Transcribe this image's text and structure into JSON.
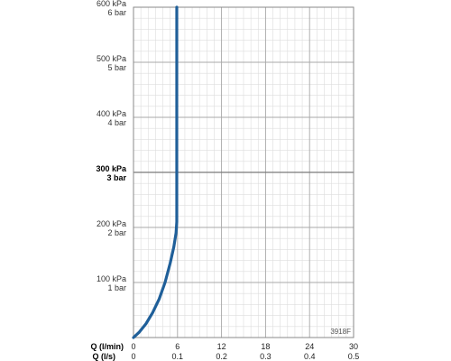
{
  "chart_data": {
    "type": "line",
    "code": "3918F",
    "y_axis": {
      "ylim": [
        0,
        600
      ],
      "ticks": [
        {
          "value": 100,
          "label_kpa": "100 kPa",
          "label_bar": "1 bar",
          "bold": false
        },
        {
          "value": 200,
          "label_kpa": "200 kPa",
          "label_bar": "2 bar",
          "bold": false
        },
        {
          "value": 300,
          "label_kpa": "300 kPa",
          "label_bar": "3 bar",
          "bold": true
        },
        {
          "value": 400,
          "label_kpa": "400 kPa",
          "label_bar": "4 bar",
          "bold": false
        },
        {
          "value": 500,
          "label_kpa": "500 kPa",
          "label_bar": "5 bar",
          "bold": false
        },
        {
          "value": 600,
          "label_kpa": "600 kPa",
          "label_bar": "6 bar",
          "bold": false
        }
      ]
    },
    "x_axis": {
      "xlim": [
        0,
        30
      ],
      "label_lmin": "Q (l/min)",
      "label_ls": "Q (l/s)",
      "ticks": [
        {
          "value": 0,
          "label_lmin": "0",
          "label_ls": "0"
        },
        {
          "value": 6,
          "label_lmin": "6",
          "label_ls": "0.1"
        },
        {
          "value": 12,
          "label_lmin": "12",
          "label_ls": "0.2"
        },
        {
          "value": 18,
          "label_lmin": "18",
          "label_ls": "0.3"
        },
        {
          "value": 24,
          "label_lmin": "24",
          "label_ls": "0.4"
        },
        {
          "value": 30,
          "label_lmin": "30",
          "label_ls": "0.5"
        }
      ]
    },
    "series": [
      {
        "color": "#1f5f99",
        "x": [
          0,
          0.8,
          1.7,
          2.6,
          3.5,
          4.3,
          5.0,
          5.5,
          5.8,
          5.9,
          5.9,
          5.9
        ],
        "y": [
          0,
          10,
          25,
          45,
          70,
          100,
          135,
          165,
          190,
          210,
          400,
          600
        ]
      }
    ],
    "grid": true
  }
}
